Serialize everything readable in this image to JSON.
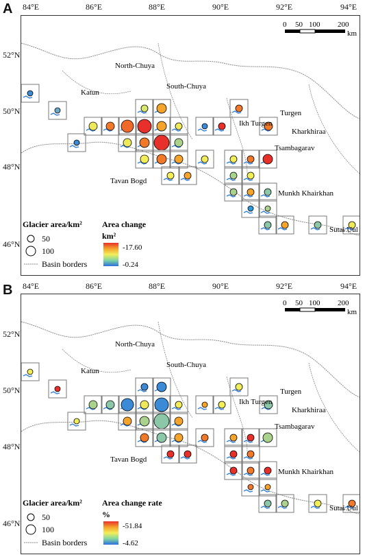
{
  "panel_a": {
    "letter": "A",
    "legend_size_title": "Glacier area/km²",
    "legend_size_values": [
      "50",
      "100"
    ],
    "basin_label": "Basin borders",
    "legend_color_title": "Area change",
    "legend_color_unit": "km²",
    "legend_color_max": "-17.60",
    "legend_color_min": "-0.24"
  },
  "panel_b": {
    "letter": "B",
    "legend_size_title": "Glacier area/km²",
    "legend_size_values": [
      "50",
      "100"
    ],
    "basin_label": "Basin borders",
    "legend_color_title": "Area change rate",
    "legend_color_unit": "%",
    "legend_color_max": "-51.84",
    "legend_color_min": "-4.62"
  },
  "lon_ticks": [
    "84°E",
    "86°E",
    "88°E",
    "90°E",
    "92°E",
    "94°E"
  ],
  "lat_ticks": [
    "52°N",
    "50°N",
    "48°N",
    "46°N"
  ],
  "scalebar": {
    "labels": [
      "0",
      "50",
      "100",
      "200"
    ],
    "unit": "km"
  },
  "place_labels": [
    "North-Chuya",
    "South-Chuya",
    "Katun",
    "Tavan Bogd",
    "Ikh Turgen",
    "Turgen",
    "Kharkhiraa",
    "Tsambagarav",
    "Munkh Khairkhan",
    "Sutai Uul"
  ],
  "colors": {
    "frame": "#333333",
    "cell_border": "#777777",
    "basin_line": "#888888",
    "glacier": "#2f7fe0"
  }
}
